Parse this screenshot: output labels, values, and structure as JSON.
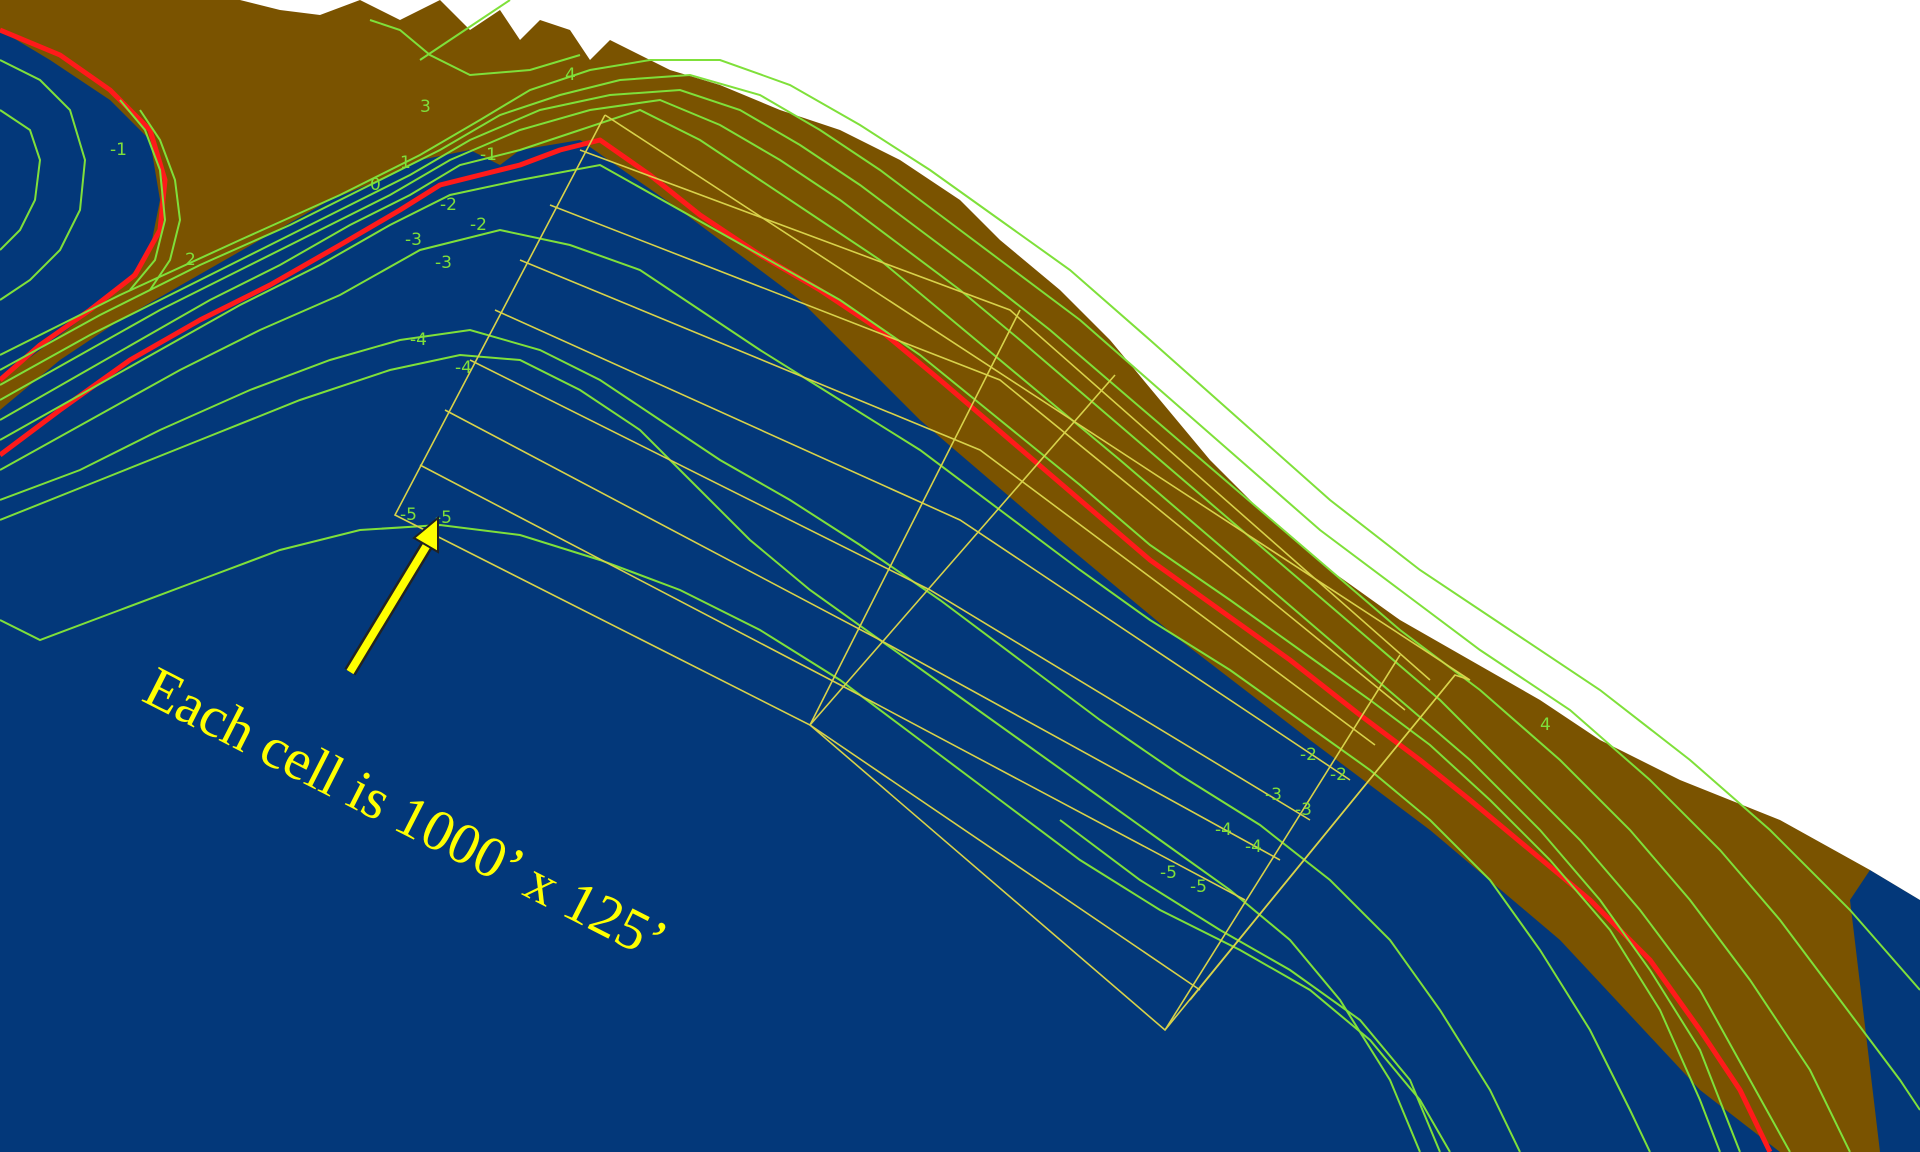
{
  "annotation": {
    "text": "Each cell is 1000’ x 125’",
    "color": "#ffff00"
  },
  "colors": {
    "water": "#03387a",
    "land": "#7a5300",
    "contour": "#7fe03a",
    "grid": "#d8d24a",
    "shoreline": "#ff1a1a",
    "arrow": "#ffff00"
  },
  "contour_labels": [
    "-5",
    "-5",
    "-4",
    "-4",
    "-3",
    "-3",
    "-2",
    "-2",
    "-1",
    "-1",
    "0",
    "1",
    "2",
    "3",
    "4",
    "4",
    "-2",
    "-2",
    "-3",
    "-3",
    "-4",
    "-4",
    "-5",
    "-5"
  ]
}
